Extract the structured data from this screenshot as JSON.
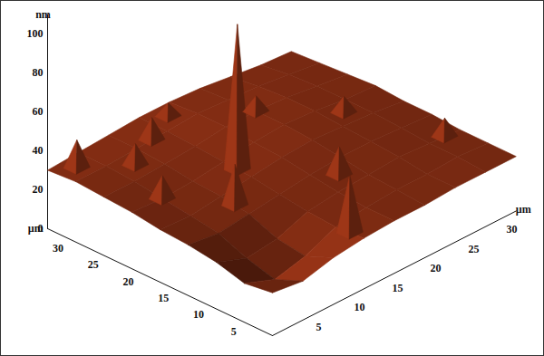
{
  "chart_data": {
    "type": "surface",
    "color": "#7b2a12",
    "x_label": "µm",
    "y_label": "µm",
    "z_label": "nm",
    "xlim": [
      0,
      32
    ],
    "ylim": [
      0,
      32
    ],
    "zlim": [
      0,
      110
    ],
    "xticks": [
      5,
      10,
      15,
      20,
      25,
      30
    ],
    "yticks": [
      5,
      10,
      15,
      20,
      25,
      30
    ],
    "zticks": [
      0,
      20,
      40,
      60,
      80,
      100
    ],
    "surface": {
      "x": [
        0,
        4,
        8,
        12,
        16,
        20,
        24,
        28,
        32
      ],
      "y": [
        0,
        4,
        8,
        12,
        16,
        20,
        24,
        28,
        32
      ],
      "z": [
        [
          22,
          20,
          24,
          26,
          27,
          27,
          28,
          28,
          28
        ],
        [
          20,
          14,
          18,
          25,
          27,
          28,
          28,
          29,
          28
        ],
        [
          24,
          18,
          20,
          26,
          28,
          29,
          30,
          29,
          28
        ],
        [
          26,
          24,
          26,
          28,
          30,
          31,
          31,
          30,
          29
        ],
        [
          27,
          26,
          28,
          30,
          32,
          33,
          32,
          31,
          29
        ],
        [
          29,
          28,
          29,
          31,
          33,
          34,
          33,
          31,
          30
        ],
        [
          30,
          30,
          31,
          32,
          34,
          34,
          33,
          31,
          29
        ],
        [
          31,
          31,
          32,
          33,
          34,
          33,
          32,
          30,
          28
        ],
        [
          30,
          31,
          32,
          33,
          33,
          32,
          30,
          28,
          27
        ]
      ]
    },
    "peaks": [
      {
        "x": 12,
        "y": 18,
        "z": 105
      },
      {
        "x": 12,
        "y": 2,
        "z": 55
      },
      {
        "x": 2,
        "y": 30,
        "z": 45
      },
      {
        "x": 6,
        "y": 26,
        "z": 42
      },
      {
        "x": 10,
        "y": 28,
        "z": 44
      },
      {
        "x": 14,
        "y": 30,
        "z": 40
      },
      {
        "x": 20,
        "y": 24,
        "z": 42
      },
      {
        "x": 26,
        "y": 18,
        "z": 40
      },
      {
        "x": 30,
        "y": 8,
        "z": 38
      },
      {
        "x": 4,
        "y": 20,
        "z": 40
      },
      {
        "x": 18,
        "y": 10,
        "z": 44
      },
      {
        "x": 8,
        "y": 14,
        "z": 48
      }
    ]
  }
}
